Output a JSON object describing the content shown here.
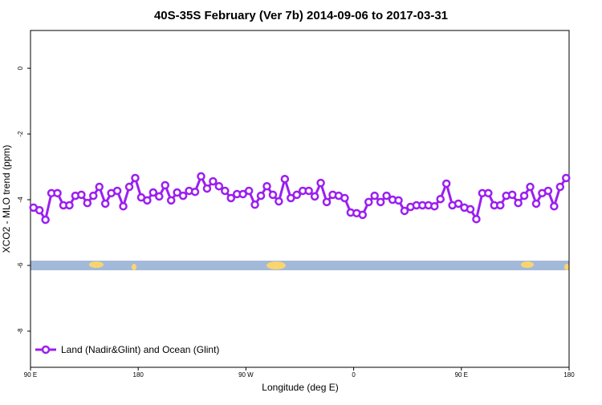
{
  "chart_data": {
    "type": "line",
    "title": "40S-35S February (Ver 7b)   2014-09-06 to 2017-03-31",
    "x_label": "Longitude (deg E)",
    "y_label": "XCO2 - MLO trend (ppm)",
    "xlim": [
      90,
      540
    ],
    "xticks": [
      {
        "value": 90,
        "label": "90 E"
      },
      {
        "value": 180,
        "label": "180"
      },
      {
        "value": 270,
        "label": "90 W"
      },
      {
        "value": 360,
        "label": "0"
      },
      {
        "value": 450,
        "label": "90 E"
      },
      {
        "value": 540,
        "label": "180"
      }
    ],
    "ylim": [
      -9.1,
      1.15
    ],
    "yticks": [
      0,
      -2,
      -4,
      -6,
      -8
    ],
    "legend": "bottom-left",
    "x": [
      92.5,
      97.5,
      102.5,
      107.5,
      112.5,
      117.5,
      122.5,
      127.5,
      132.5,
      137.5,
      142.5,
      147.5,
      152.5,
      157.5,
      162.5,
      167.5,
      172.5,
      177.5,
      182.5,
      187.5,
      192.5,
      197.5,
      202.5,
      207.5,
      212.5,
      217.5,
      222.5,
      227.5,
      232.5,
      237.5,
      242.5,
      247.5,
      252.5,
      257.5,
      262.5,
      267.5,
      272.5,
      277.5,
      282.5,
      287.5,
      292.5,
      297.5,
      302.5,
      307.5,
      312.5,
      317.5,
      322.5,
      327.5,
      332.5,
      337.5,
      342.5,
      347.5,
      352.5,
      357.5,
      362.5,
      367.5,
      372.5,
      377.5,
      382.5,
      387.5,
      392.5,
      397.5,
      402.5,
      407.5,
      412.5,
      417.5,
      422.5,
      427.5,
      432.5,
      437.5,
      442.5,
      447.5,
      452.5,
      457.5,
      462.5,
      467.5,
      472.5,
      477.5,
      482.5,
      487.5,
      492.5,
      497.5,
      502.5,
      507.5,
      512.5,
      517.5,
      522.5,
      527.5,
      532.5,
      537.5
    ],
    "series": [
      {
        "name": "Land (Nadir&Glint) and Ocean (Glint)",
        "color": "#9b1ff0",
        "values": [
          -4.24,
          -4.32,
          -4.61,
          -3.8,
          -3.8,
          -4.17,
          -4.17,
          -3.88,
          -3.85,
          -4.1,
          -3.88,
          -3.61,
          -4.12,
          -3.8,
          -3.73,
          -4.2,
          -3.61,
          -3.34,
          -3.93,
          -4.02,
          -3.78,
          -3.9,
          -3.56,
          -4.02,
          -3.78,
          -3.88,
          -3.73,
          -3.76,
          -3.29,
          -3.66,
          -3.44,
          -3.59,
          -3.73,
          -3.95,
          -3.83,
          -3.83,
          -3.73,
          -4.15,
          -3.88,
          -3.59,
          -3.85,
          -4.05,
          -3.37,
          -3.95,
          -3.85,
          -3.73,
          -3.73,
          -3.9,
          -3.49,
          -4.07,
          -3.85,
          -3.88,
          -3.95,
          -4.39,
          -4.41,
          -4.46,
          -4.07,
          -3.88,
          -4.07,
          -3.88,
          -4.0,
          -4.02,
          -4.34,
          -4.22,
          -4.17,
          -4.17,
          -4.17,
          -4.2,
          -3.98,
          -3.51,
          -4.17,
          -4.12,
          -4.24,
          -4.29,
          -4.59,
          -3.8,
          -3.8,
          -4.17,
          -4.17,
          -3.88,
          -3.85,
          -4.1,
          -3.88,
          -3.61,
          -4.12,
          -3.8,
          -3.73,
          -4.2,
          -3.61,
          -3.34
        ]
      }
    ]
  }
}
